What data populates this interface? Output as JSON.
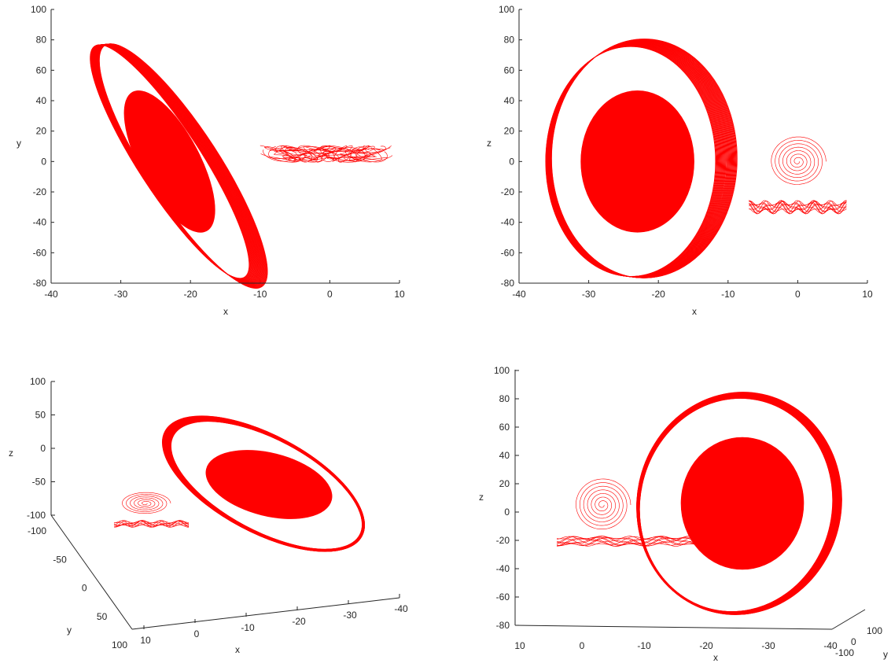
{
  "chart_data": [
    {
      "type": "line",
      "view": "2d",
      "title": "",
      "xlabel": "x",
      "ylabel": "y",
      "xlim": [
        -40,
        10
      ],
      "ylim": [
        -80,
        100
      ],
      "xticks": [
        -40,
        -30,
        -20,
        -10,
        0,
        10
      ],
      "yticks": [
        -80,
        -60,
        -40,
        -20,
        0,
        20,
        40,
        60,
        80,
        100
      ],
      "color": "#ff0000"
    },
    {
      "type": "line",
      "view": "2d",
      "title": "",
      "xlabel": "x",
      "ylabel": "z",
      "xlim": [
        -40,
        10
      ],
      "ylim": [
        -80,
        100
      ],
      "xticks": [
        -40,
        -30,
        -20,
        -10,
        0,
        10
      ],
      "yticks": [
        -80,
        -60,
        -40,
        -20,
        0,
        20,
        40,
        60,
        80,
        100
      ],
      "color": "#ff0000"
    },
    {
      "type": "line",
      "view": "3d",
      "title": "",
      "xlabel": "x",
      "ylabel": "y",
      "zlabel": "z",
      "xticks": [
        10,
        0,
        -10,
        -20,
        -30,
        -40
      ],
      "yticks": [
        -100,
        -50,
        0,
        50,
        100
      ],
      "zticks": [
        100,
        50,
        0,
        -50,
        -100
      ],
      "color": "#ff0000"
    },
    {
      "type": "line",
      "view": "3d",
      "title": "",
      "xlabel": "x",
      "ylabel": "y",
      "zlabel": "z",
      "xticks": [
        10,
        0,
        -10,
        -20,
        -30,
        -40
      ],
      "yticks": [
        100,
        0,
        -100
      ],
      "zticks": [
        -80,
        -60,
        -40,
        -20,
        0,
        20,
        40,
        60,
        80,
        100
      ],
      "color": "#ff0000"
    }
  ]
}
